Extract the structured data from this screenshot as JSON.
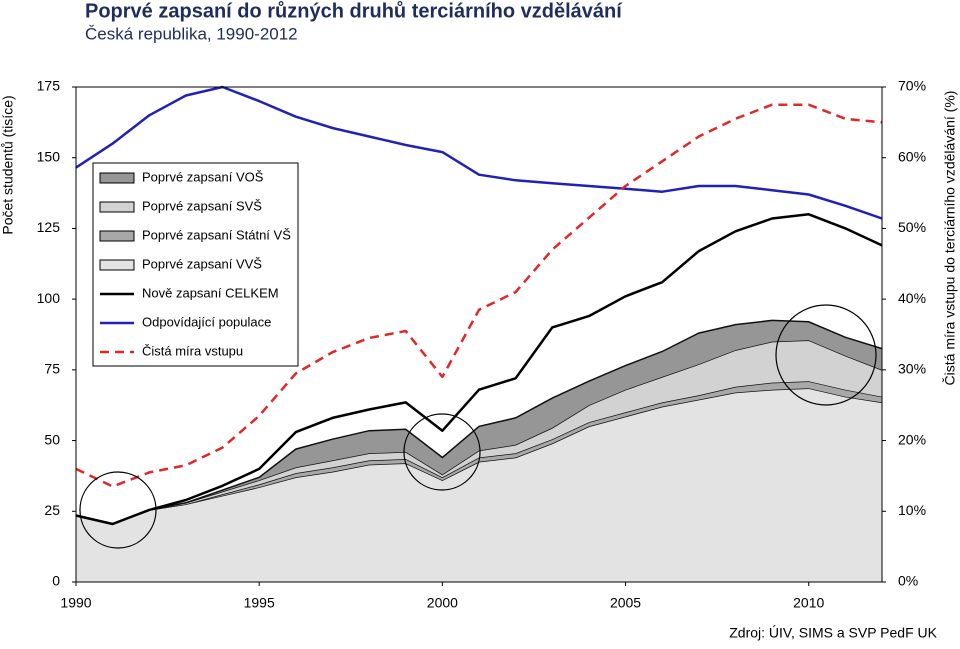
{
  "chart_data": {
    "type": "combo",
    "title": "Poprvé zapsaní do různých druhů terciárního vzdělávání",
    "subtitle": "Česká republika, 1990-2012",
    "y_label": "Počet studentů (tisíce)",
    "y2_label": "Čistá míra vstupu do terciárního vzdělávání (%)",
    "source": "Zdroj: ÚIV, SIMS a SVP PedF UK",
    "x": [
      1990,
      1991,
      1992,
      1993,
      1994,
      1995,
      1996,
      1997,
      1998,
      1999,
      2000,
      2001,
      2002,
      2003,
      2004,
      2005,
      2006,
      2007,
      2008,
      2009,
      2010,
      2011,
      2012
    ],
    "xlim": [
      1990,
      2012
    ],
    "xticks": [
      1990,
      1995,
      2000,
      2005,
      2010
    ],
    "ylim": [
      0,
      175
    ],
    "yticks": [
      0,
      25,
      50,
      75,
      100,
      125,
      150,
      175
    ],
    "y2lim": [
      0,
      70
    ],
    "y2ticks": [
      {
        "value": 0,
        "label": "0%"
      },
      {
        "value": 10,
        "label": "10%"
      },
      {
        "value": 20,
        "label": "20%"
      },
      {
        "value": 30,
        "label": "30%"
      },
      {
        "value": 40,
        "label": "40%"
      },
      {
        "value": 50,
        "label": "50%"
      },
      {
        "value": 60,
        "label": "60%"
      },
      {
        "value": 70,
        "label": "70%"
      }
    ],
    "series": [
      {
        "name": "Poprvé zapsaní VVŠ",
        "type": "area",
        "color": "#e3e3e3",
        "values": [
          23.5,
          20.5,
          25.5,
          27.5,
          30.5,
          33.5,
          37,
          39,
          41.5,
          42,
          36,
          42.5,
          44,
          49,
          55,
          58.5,
          62,
          64.5,
          67,
          68,
          68.5,
          65.5,
          63.5
        ]
      },
      {
        "name": "Poprvé zapsaní Státní VŠ",
        "type": "area",
        "color": "#a8a8a8",
        "values": [
          0,
          0,
          0,
          0,
          0.5,
          1,
          1.5,
          1.5,
          1.5,
          1.5,
          1,
          1.5,
          1.5,
          1.5,
          1.5,
          1.5,
          1.5,
          1.5,
          2,
          2.5,
          2.5,
          2.5,
          2
        ]
      },
      {
        "name": "Poprvé zapsaní SVŠ",
        "type": "area",
        "color": "#d2d2d2",
        "values": [
          0,
          0,
          0,
          0.5,
          1,
          1.5,
          2,
          2.5,
          2.5,
          2.5,
          1,
          2.5,
          3,
          4,
          6,
          8,
          9,
          11,
          13,
          14.5,
          14.5,
          12,
          9.5
        ]
      },
      {
        "name": "Poprvé zapsaní VOŠ",
        "type": "area",
        "color": "#969696",
        "values": [
          0,
          0,
          0,
          0,
          0.5,
          1,
          6.5,
          7.5,
          8,
          8,
          6,
          8.5,
          9.5,
          10.5,
          8.5,
          8.5,
          9,
          11,
          9,
          7.5,
          6.5,
          6.5,
          7.5
        ]
      },
      {
        "name": "Nově zapsaní CELKEM",
        "type": "line",
        "color": "#000000",
        "values": [
          23.5,
          20.5,
          25.5,
          29,
          34,
          40,
          53,
          58,
          61,
          63.5,
          53.5,
          68,
          72,
          90,
          94,
          101,
          106,
          117,
          124,
          128.5,
          130,
          125,
          119
        ]
      },
      {
        "name": "Odpovídající populace",
        "type": "line",
        "color": "#2121b8",
        "values": [
          146.5,
          155,
          165,
          172,
          175,
          170,
          164.5,
          160.5,
          157.5,
          154.5,
          152,
          144,
          142,
          141,
          140,
          139,
          138,
          140,
          140,
          138.5,
          137,
          133,
          128.5
        ]
      },
      {
        "name": "Čistá míra vstupu",
        "type": "dashed",
        "axis": "y2",
        "color": "#e02828",
        "values": [
          16,
          13.5,
          15.5,
          16.5,
          19,
          23.5,
          29.5,
          32.5,
          34.5,
          35.5,
          29,
          38.5,
          41,
          47,
          51.5,
          56,
          59.5,
          63,
          65.5,
          67.5,
          67.5,
          65.5,
          65
        ]
      }
    ],
    "legend_order": [
      3,
      2,
      1,
      0,
      4,
      5,
      6
    ]
  }
}
